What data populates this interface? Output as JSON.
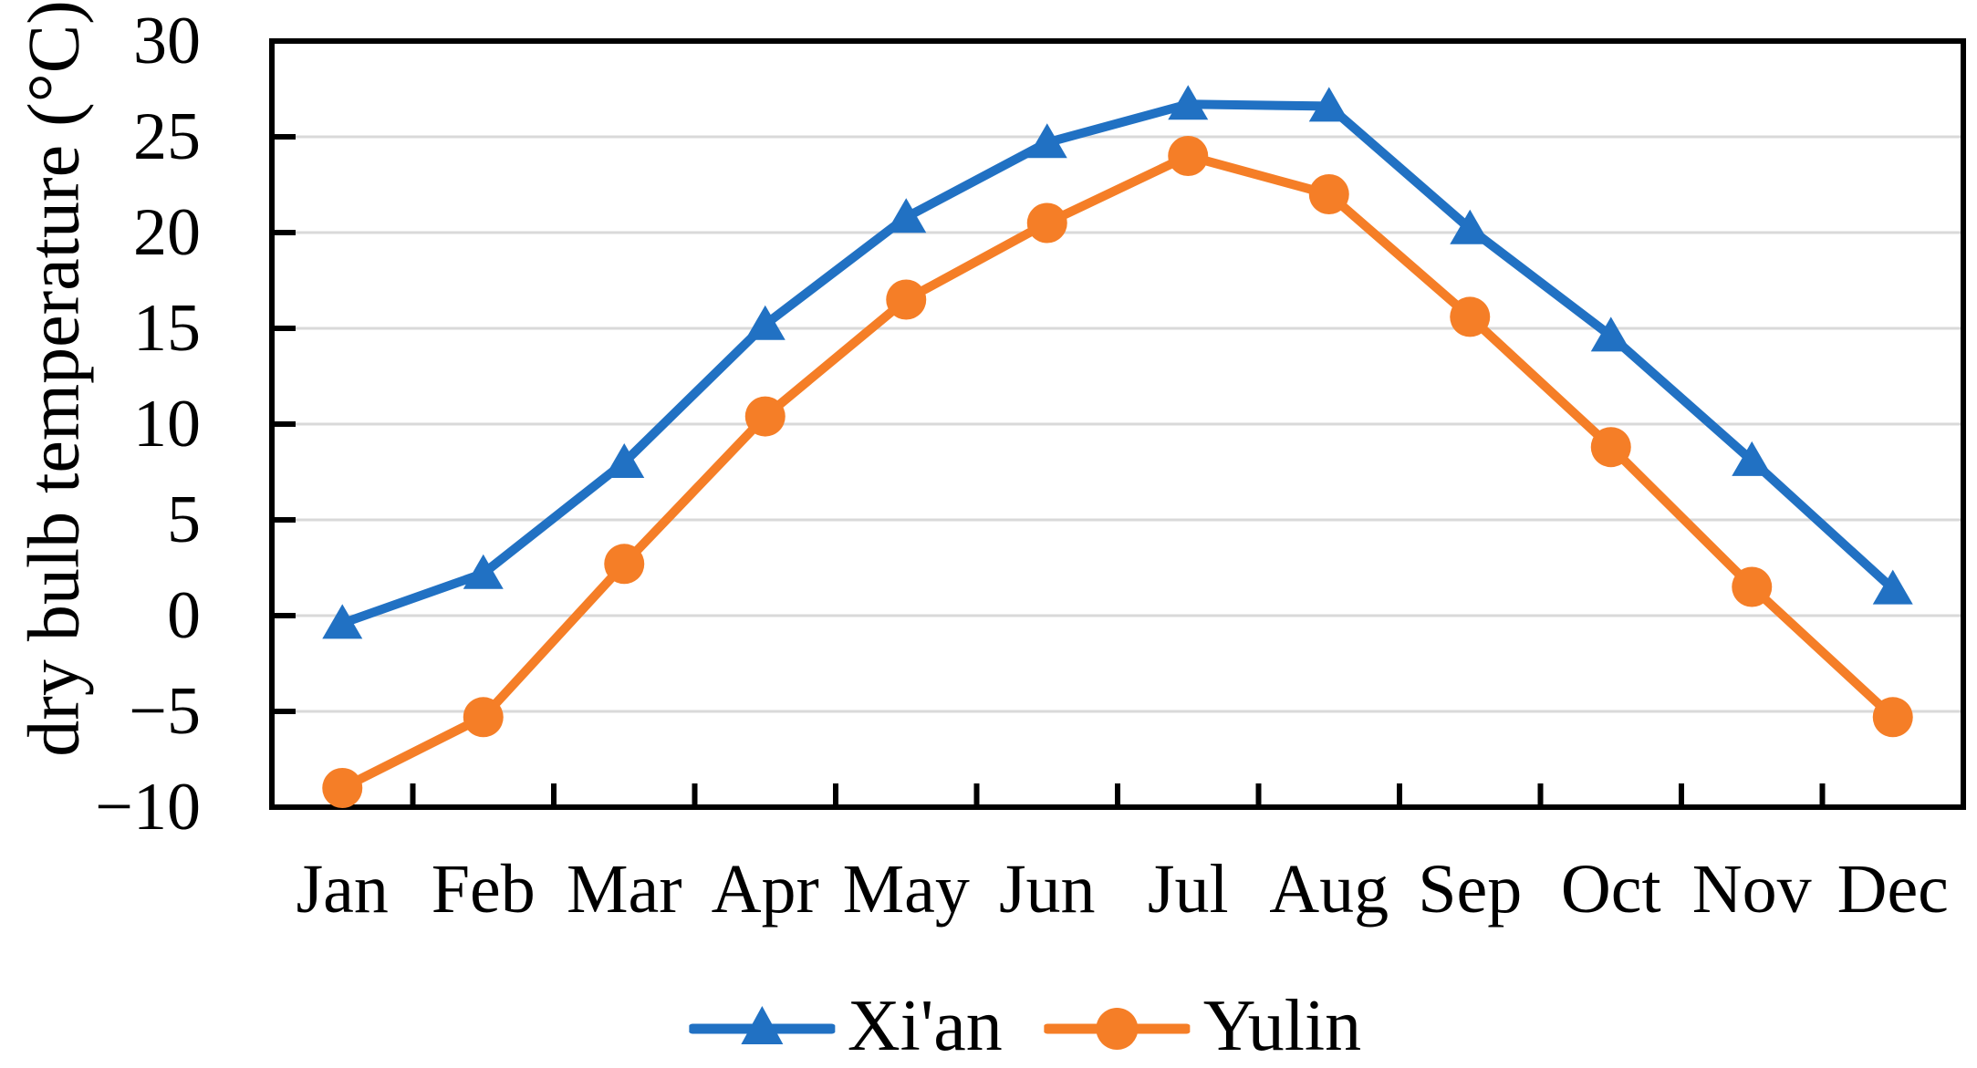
{
  "chart_data": {
    "type": "line",
    "title": "",
    "ylabel": "dry bulb temperature (°C)",
    "xlabel": "",
    "categories": [
      "Jan",
      "Feb",
      "Mar",
      "Apr",
      "May",
      "Jun",
      "Jul",
      "Aug",
      "Sep",
      "Oct",
      "Nov",
      "Dec"
    ],
    "series": [
      {
        "name": "Xi'an",
        "marker": "triangle",
        "color": "#2171C3",
        "values": [
          -0.4,
          2.2,
          8.0,
          15.2,
          20.8,
          24.7,
          26.7,
          26.6,
          20.2,
          14.6,
          8.1,
          1.4
        ]
      },
      {
        "name": "Yulin",
        "marker": "circle",
        "color": "#F57E27",
        "values": [
          -9.0,
          -5.3,
          2.7,
          10.4,
          16.5,
          20.5,
          24.0,
          22.0,
          15.6,
          8.8,
          1.5,
          -5.3
        ]
      }
    ],
    "ylim": [
      -10,
      30
    ],
    "yticks": [
      30,
      25,
      20,
      15,
      10,
      5,
      0,
      -5,
      -10
    ],
    "grid": "horizontal",
    "gridline_color": "#D9D9D9",
    "axis_color": "#000000",
    "legend_position": "bottom"
  }
}
